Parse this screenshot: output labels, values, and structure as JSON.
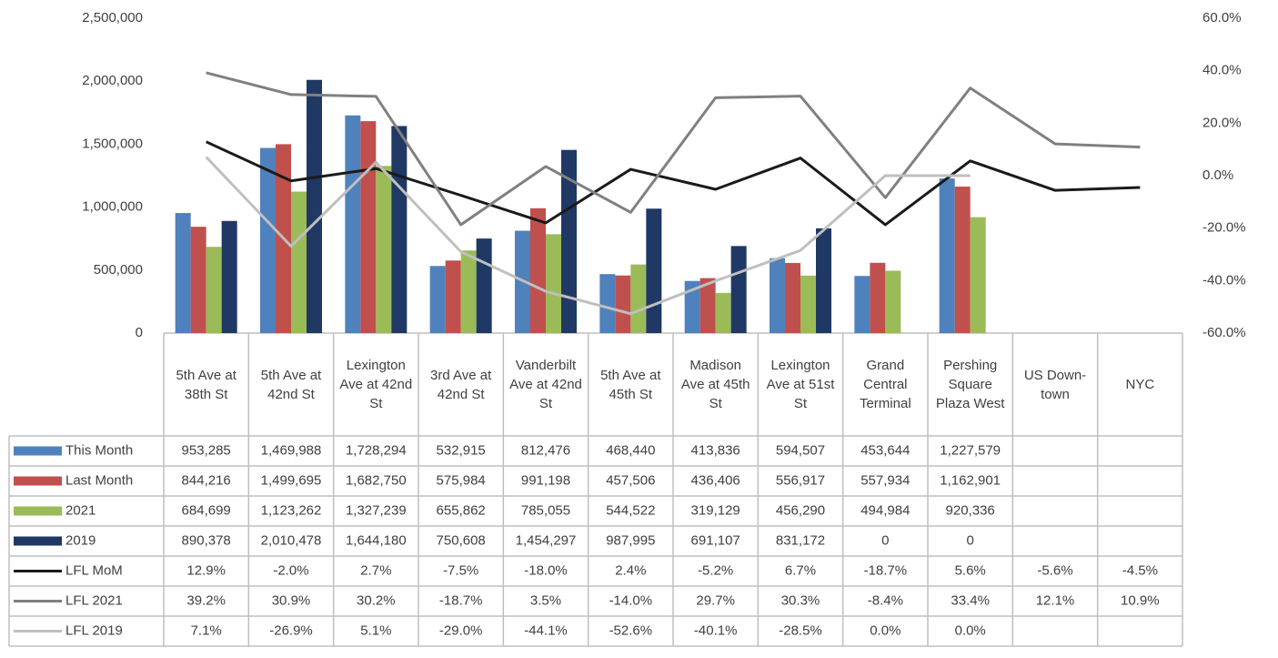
{
  "chart_data": {
    "type": "bar",
    "categories": [
      "5th Ave at 38th St",
      "5th Ave at 42nd St",
      "Lexington Ave at 42nd St",
      "3rd Ave at 42nd St",
      "Vanderbilt Ave at 42nd St",
      "5th Ave at 45th St",
      "Madison Ave at 45th St",
      "Lexington Ave at 51st St",
      "Grand Central Terminal",
      "Pershing Square Plaza West",
      "US Down-town",
      "NYC"
    ],
    "ylim": [
      0,
      2500000
    ],
    "yticks": [
      0,
      {
        "value": 500000,
        "label": "500,000"
      },
      {
        "value": 1000000,
        "label": "1,000,000"
      },
      {
        "value": 1500000,
        "label": "1,500,000"
      },
      {
        "value": 2000000,
        "label": "2,000,000"
      },
      {
        "value": 2500000,
        "label": "2,500,000"
      }
    ],
    "y2lim": [
      -60,
      60
    ],
    "y2ticks": [
      {
        "value": -60,
        "label": "-60.0%"
      },
      {
        "value": -40,
        "label": "-40.0%"
      },
      {
        "value": -20,
        "label": "-20.0%"
      },
      {
        "value": 0,
        "label": "0.0%"
      },
      {
        "value": 20,
        "label": "20.0%"
      },
      {
        "value": 40,
        "label": "40.0%"
      },
      {
        "value": 60,
        "label": "60.0%"
      }
    ],
    "series": [
      {
        "name": "This Month",
        "type": "bar",
        "color": "#4f81bd",
        "values": [
          953285,
          1469988,
          1728294,
          532915,
          812476,
          468440,
          413836,
          594507,
          453644,
          1227579,
          null,
          null
        ],
        "value_labels": [
          "953,285",
          "1,469,988",
          "1,728,294",
          "532,915",
          "812,476",
          "468,440",
          "413,836",
          "594,507",
          "453,644",
          "1,227,579",
          null,
          null
        ]
      },
      {
        "name": "Last Month",
        "type": "bar",
        "color": "#c0504d",
        "values": [
          844216,
          1499695,
          1682750,
          575984,
          991198,
          457506,
          436406,
          556917,
          557934,
          1162901,
          null,
          null
        ],
        "value_labels": [
          "844,216",
          "1,499,695",
          "1,682,750",
          "575,984",
          "991,198",
          "457,506",
          "436,406",
          "556,917",
          "557,934",
          "1,162,901",
          null,
          null
        ]
      },
      {
        "name": "2021",
        "type": "bar",
        "color": "#9bbb59",
        "values": [
          684699,
          1123262,
          1327239,
          655862,
          785055,
          544522,
          319129,
          456290,
          494984,
          920336,
          null,
          null
        ],
        "value_labels": [
          "684,699",
          "1,123,262",
          "1,327,239",
          "655,862",
          "785,055",
          "544,522",
          "319,129",
          "456,290",
          "494,984",
          "920,336",
          null,
          null
        ]
      },
      {
        "name": "2019",
        "type": "bar",
        "color": "#1f3864",
        "values": [
          890378,
          2010478,
          1644180,
          750608,
          1454297,
          987995,
          691107,
          831172,
          0,
          0,
          null,
          null
        ],
        "value_labels": [
          "890,378",
          "2,010,478",
          "1,644,180",
          "750,608",
          "1,454,297",
          "987,995",
          "691,107",
          "831,172",
          "0",
          "0",
          null,
          null
        ]
      },
      {
        "name": "LFL MoM",
        "type": "line",
        "axis": "y2",
        "color": "#1a1a1a",
        "values": [
          12.9,
          -2.0,
          2.7,
          -7.5,
          -18.0,
          2.4,
          -5.2,
          6.7,
          -18.7,
          5.6,
          -5.6,
          -4.5
        ],
        "value_labels": [
          "12.9%",
          "-2.0%",
          "2.7%",
          "-7.5%",
          "-18.0%",
          "2.4%",
          "-5.2%",
          "6.7%",
          "-18.7%",
          "5.6%",
          "-5.6%",
          "-4.5%"
        ]
      },
      {
        "name": "LFL 2021",
        "type": "line",
        "axis": "y2",
        "color": "#808080",
        "values": [
          39.2,
          30.9,
          30.2,
          -18.7,
          3.5,
          -14.0,
          29.7,
          30.3,
          -8.4,
          33.4,
          12.1,
          10.9
        ],
        "value_labels": [
          "39.2%",
          "30.9%",
          "30.2%",
          "-18.7%",
          "3.5%",
          "-14.0%",
          "29.7%",
          "30.3%",
          "-8.4%",
          "33.4%",
          "12.1%",
          "10.9%"
        ]
      },
      {
        "name": "LFL 2019",
        "type": "line",
        "axis": "y2",
        "color": "#bfbfbf",
        "values": [
          7.1,
          -26.9,
          5.1,
          -29.0,
          -44.1,
          -52.6,
          -40.1,
          -28.5,
          0.0,
          0.0,
          null,
          null
        ],
        "value_labels": [
          "7.1%",
          "-26.9%",
          "5.1%",
          "-29.0%",
          "-44.1%",
          "-52.6%",
          "-40.1%",
          "-28.5%",
          "0.0%",
          "0.0%",
          null,
          null
        ]
      }
    ]
  }
}
